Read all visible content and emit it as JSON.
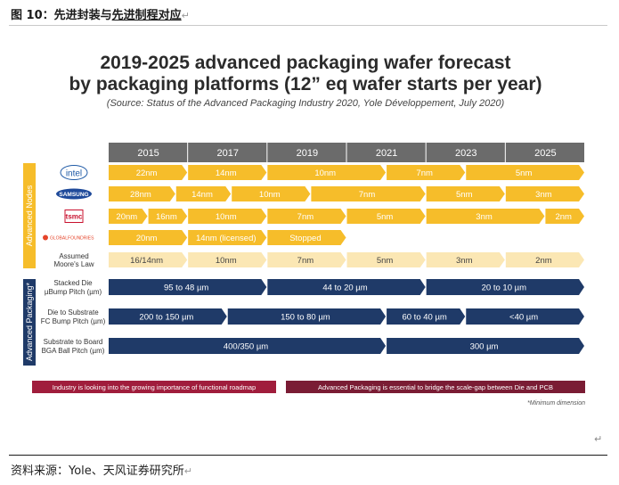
{
  "caption": {
    "prefix": "图 10：先进封装与",
    "underlined": "先进制程对应",
    "mark": "↵"
  },
  "chart_data": {
    "type": "table",
    "title_line1": "2019-2025 advanced packaging wafer forecast",
    "title_line2": "by packaging platforms (12” eq wafer starts per year)",
    "subtitle": "(Source: Status of the Advanced Packaging Industry 2020, Yole Développement, July 2020)",
    "years": [
      "2015",
      "2017",
      "2019",
      "2021",
      "2023",
      "2025"
    ],
    "group_labels": {
      "nodes": "Advanced Nodes",
      "packaging": "Advanced Packaging*"
    },
    "node_rows": [
      {
        "label": "intel",
        "segments": [
          {
            "text": "22nm",
            "from": 0,
            "to": 1
          },
          {
            "text": "14nm",
            "from": 1,
            "to": 2
          },
          {
            "text": "10nm",
            "from": 2,
            "to": 3.5
          },
          {
            "text": "7nm",
            "from": 3.5,
            "to": 4.5
          },
          {
            "text": "5nm",
            "from": 4.5,
            "to": 6
          }
        ]
      },
      {
        "label": "SAMSUNG",
        "segments": [
          {
            "text": "28nm",
            "from": 0,
            "to": 0.85
          },
          {
            "text": "14nm",
            "from": 0.85,
            "to": 1.55
          },
          {
            "text": "10nm",
            "from": 1.55,
            "to": 2.55
          },
          {
            "text": "7nm",
            "from": 2.55,
            "to": 4
          },
          {
            "text": "5nm",
            "from": 4,
            "to": 5
          },
          {
            "text": "3nm",
            "from": 5,
            "to": 6
          }
        ]
      },
      {
        "label": "tsmc",
        "segments": [
          {
            "text": "20nm",
            "from": 0,
            "to": 0.5
          },
          {
            "text": "16nm",
            "from": 0.5,
            "to": 1
          },
          {
            "text": "10nm",
            "from": 1,
            "to": 2
          },
          {
            "text": "7nm",
            "from": 2,
            "to": 3
          },
          {
            "text": "5nm",
            "from": 3,
            "to": 4
          },
          {
            "text": "3nm",
            "from": 4,
            "to": 5.5
          },
          {
            "text": "2nm",
            "from": 5.5,
            "to": 6
          }
        ]
      },
      {
        "label": "GLOBALFOUNDRIES",
        "segments": [
          {
            "text": "20nm",
            "from": 0,
            "to": 1
          },
          {
            "text": "14nm (licensed)",
            "from": 1,
            "to": 2
          },
          {
            "text": "Stopped",
            "from": 2,
            "to": 3
          }
        ]
      },
      {
        "label": "Assumed Moore's Law",
        "segments": [
          {
            "text": "16/14nm",
            "from": 0,
            "to": 1
          },
          {
            "text": "10nm",
            "from": 1,
            "to": 2
          },
          {
            "text": "7nm",
            "from": 2,
            "to": 3
          },
          {
            "text": "5nm",
            "from": 3,
            "to": 4
          },
          {
            "text": "3nm",
            "from": 4,
            "to": 5
          },
          {
            "text": "2nm",
            "from": 5,
            "to": 6
          }
        ]
      }
    ],
    "packaging_rows": [
      {
        "label1": "Stacked Die",
        "label2": "µBump Pitch (µm)",
        "segments": [
          {
            "text": "95 to 48 µm",
            "from": 0,
            "to": 2
          },
          {
            "text": "44 to 20 µm",
            "from": 2,
            "to": 4
          },
          {
            "text": "20 to 10 µm",
            "from": 4,
            "to": 6
          }
        ]
      },
      {
        "label1": "Die to Substrate",
        "label2": "FC Bump Pitch (µm)",
        "segments": [
          {
            "text": "200 to 150 µm",
            "from": 0,
            "to": 1.5
          },
          {
            "text": "150 to 80 µm",
            "from": 1.5,
            "to": 3.5
          },
          {
            "text": "60 to 40 µm",
            "from": 3.5,
            "to": 4.5
          },
          {
            "text": "<40 µm",
            "from": 4.5,
            "to": 6
          }
        ]
      },
      {
        "label1": "Substrate to Board",
        "label2": "BGA Ball Pitch (µm)",
        "segments": [
          {
            "text": "400/350 µm",
            "from": 0,
            "to": 3.5
          },
          {
            "text": "300 µm",
            "from": 3.5,
            "to": 6
          }
        ]
      }
    ],
    "notes": {
      "left": "Industry is looking into the growing importance of functional roadmap",
      "right": "Advanced Packaging is essential to bridge the scale-gap between Die and PCB",
      "footnote": "*Minimum dimension"
    },
    "colors": {
      "year_header": "#6b6b6b",
      "node_bar": "#f6bd2a",
      "moore_bar": "#fbe7b4",
      "pkg_bar": "#1f3a68",
      "note_left": "#a01d3c",
      "note_right": "#7a1c34",
      "group_nodes": "#f6bd2a",
      "group_pkg": "#1f3a68"
    }
  },
  "source": {
    "text": "资料来源：Yole、天风证券研究所",
    "mark": "↵"
  },
  "return_mark": "↵"
}
